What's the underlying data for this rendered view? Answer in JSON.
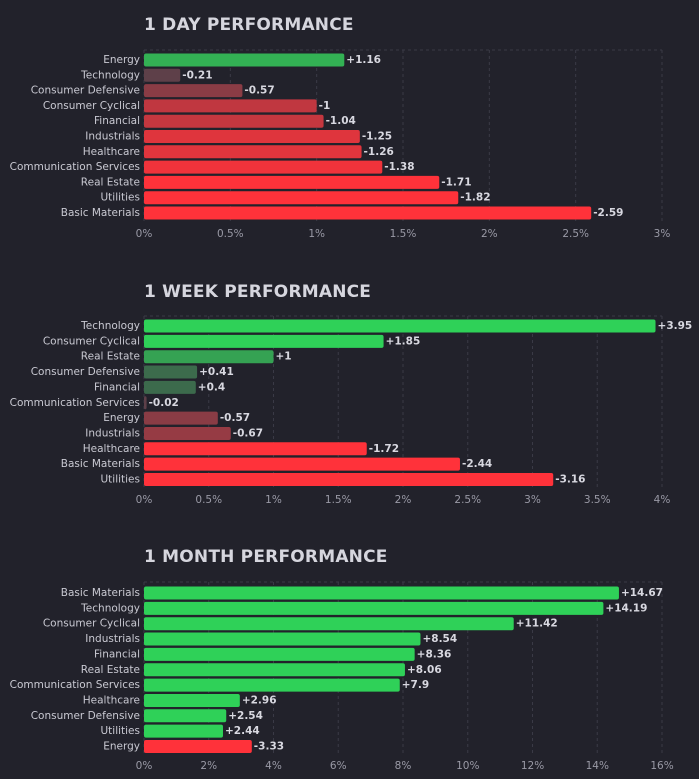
{
  "colors": {
    "background": "#22222b",
    "grid": "#3a3a46",
    "positive_strong": "#2fd158",
    "positive_weak": "#3e5a4a",
    "negative_weak": "#5e4049",
    "negative_strong": "#ff323a"
  },
  "chart_data": [
    {
      "type": "bar",
      "orientation": "horizontal",
      "title": "1 DAY PERFORMANCE",
      "categories": [
        "Energy",
        "Technology",
        "Consumer Defensive",
        "Consumer Cyclical",
        "Financial",
        "Industrials",
        "Healthcare",
        "Communication Services",
        "Real Estate",
        "Utilities",
        "Basic Materials"
      ],
      "values": [
        1.16,
        -0.21,
        -0.57,
        -1,
        -1.04,
        -1.25,
        -1.26,
        -1.38,
        -1.71,
        -1.82,
        -2.59
      ],
      "value_labels": [
        "+1.16",
        "-0.21",
        "-0.57",
        "-1",
        "-1.04",
        "-1.25",
        "-1.26",
        "-1.38",
        "-1.71",
        "-1.82",
        "-2.59"
      ],
      "xlim": [
        0,
        3
      ],
      "xticks": [
        "0%",
        "0.5%",
        "1%",
        "1.5%",
        "2%",
        "2.5%",
        "3%"
      ],
      "note": "bar length = absolute value; green = gain, red = loss"
    },
    {
      "type": "bar",
      "orientation": "horizontal",
      "title": "1 WEEK PERFORMANCE",
      "categories": [
        "Technology",
        "Consumer Cyclical",
        "Real Estate",
        "Consumer Defensive",
        "Financial",
        "Communication Services",
        "Energy",
        "Industrials",
        "Healthcare",
        "Basic Materials",
        "Utilities"
      ],
      "values": [
        3.95,
        1.85,
        1,
        0.41,
        0.4,
        -0.02,
        -0.57,
        -0.67,
        -1.72,
        -2.44,
        -3.16
      ],
      "value_labels": [
        "+3.95",
        "+1.85",
        "+1",
        "+0.41",
        "+0.4",
        "-0.02",
        "-0.57",
        "-0.67",
        "-1.72",
        "-2.44",
        "-3.16"
      ],
      "xlim": [
        0,
        4
      ],
      "xticks": [
        "0%",
        "0.5%",
        "1%",
        "1.5%",
        "2%",
        "2.5%",
        "3%",
        "3.5%",
        "4%"
      ],
      "note": "bar length = absolute value; green = gain, red = loss"
    },
    {
      "type": "bar",
      "orientation": "horizontal",
      "title": "1 MONTH PERFORMANCE",
      "categories": [
        "Basic Materials",
        "Technology",
        "Consumer Cyclical",
        "Industrials",
        "Financial",
        "Real Estate",
        "Communication Services",
        "Healthcare",
        "Consumer Defensive",
        "Utilities",
        "Energy"
      ],
      "values": [
        14.67,
        14.19,
        11.42,
        8.54,
        8.36,
        8.06,
        7.9,
        2.96,
        2.54,
        2.44,
        -3.33
      ],
      "value_labels": [
        "+14.67",
        "+14.19",
        "+11.42",
        "+8.54",
        "+8.36",
        "+8.06",
        "+7.9",
        "+2.96",
        "+2.54",
        "+2.44",
        "-3.33"
      ],
      "xlim": [
        0,
        16
      ],
      "xticks": [
        "0%",
        "2%",
        "4%",
        "6%",
        "8%",
        "10%",
        "12%",
        "14%",
        "16%"
      ],
      "note": "bar length = absolute value; green = gain, red = loss"
    }
  ]
}
